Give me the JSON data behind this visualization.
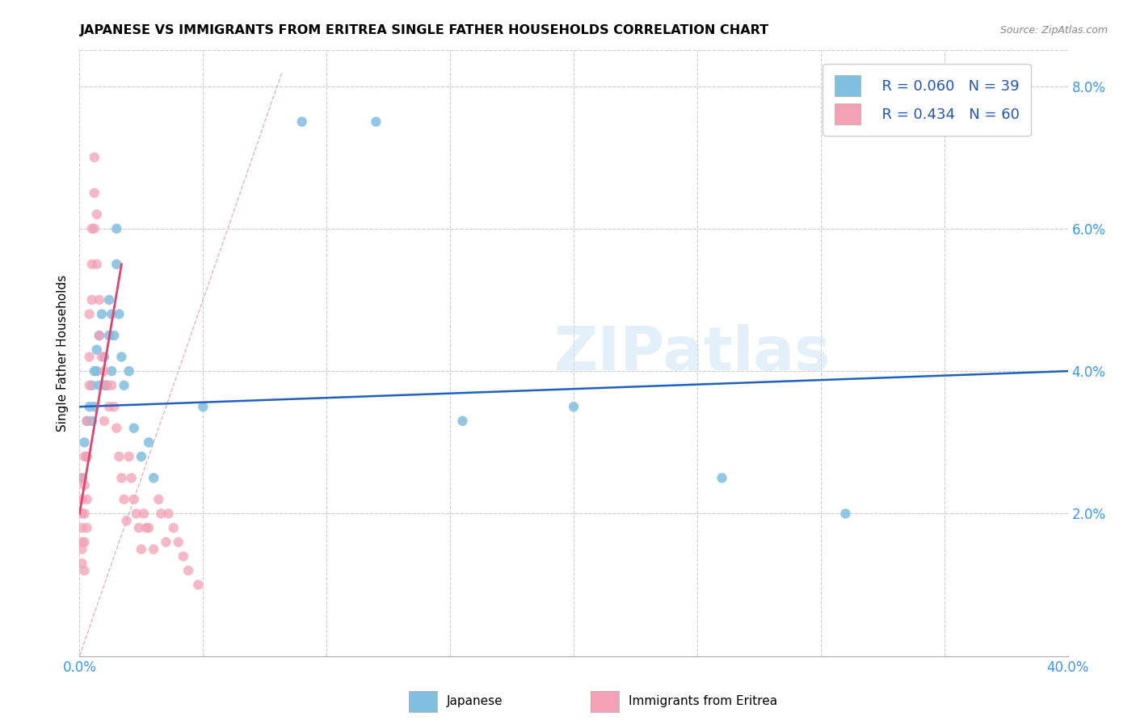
{
  "title": "JAPANESE VS IMMIGRANTS FROM ERITREA SINGLE FATHER HOUSEHOLDS CORRELATION CHART",
  "source": "Source: ZipAtlas.com",
  "ylabel": "Single Father Households",
  "x_min": 0.0,
  "x_max": 0.4,
  "y_min": 0.0,
  "y_max": 0.085,
  "x_ticks": [
    0.0,
    0.05,
    0.1,
    0.15,
    0.2,
    0.25,
    0.3,
    0.35,
    0.4
  ],
  "x_tick_labels_show": [
    "0.0%",
    "40.0%"
  ],
  "y_ticks_right": [
    0.02,
    0.04,
    0.06,
    0.08
  ],
  "y_tick_labels_right": [
    "2.0%",
    "4.0%",
    "6.0%",
    "8.0%"
  ],
  "watermark": "ZIPatlas",
  "legend_r1": "R = 0.060",
  "legend_n1": "N = 39",
  "legend_r2": "R = 0.434",
  "legend_n2": "N = 60",
  "color_japanese": "#7fbfdf",
  "color_eritrea": "#f4a0b5",
  "color_japanese_line": "#2060c0",
  "color_eritrea_line": "#e8406a",
  "color_diag": "#e8b0c0",
  "japanese_x": [
    0.001,
    0.002,
    0.003,
    0.003,
    0.004,
    0.005,
    0.005,
    0.006,
    0.006,
    0.007,
    0.007,
    0.008,
    0.008,
    0.009,
    0.01,
    0.01,
    0.011,
    0.012,
    0.012,
    0.013,
    0.013,
    0.014,
    0.015,
    0.015,
    0.016,
    0.017,
    0.018,
    0.02,
    0.022,
    0.025,
    0.028,
    0.03,
    0.05,
    0.09,
    0.12,
    0.155,
    0.2,
    0.26,
    0.31
  ],
  "japanese_y": [
    0.025,
    0.03,
    0.028,
    0.033,
    0.035,
    0.033,
    0.038,
    0.04,
    0.035,
    0.04,
    0.043,
    0.038,
    0.045,
    0.048,
    0.038,
    0.042,
    0.038,
    0.045,
    0.05,
    0.04,
    0.048,
    0.045,
    0.055,
    0.06,
    0.048,
    0.042,
    0.038,
    0.04,
    0.032,
    0.028,
    0.03,
    0.025,
    0.035,
    0.075,
    0.075,
    0.033,
    0.035,
    0.025,
    0.02
  ],
  "eritrea_x": [
    0.001,
    0.001,
    0.001,
    0.001,
    0.001,
    0.001,
    0.001,
    0.002,
    0.002,
    0.002,
    0.002,
    0.002,
    0.003,
    0.003,
    0.003,
    0.003,
    0.004,
    0.004,
    0.004,
    0.005,
    0.005,
    0.005,
    0.006,
    0.006,
    0.006,
    0.007,
    0.007,
    0.008,
    0.008,
    0.009,
    0.01,
    0.01,
    0.011,
    0.012,
    0.013,
    0.014,
    0.015,
    0.016,
    0.017,
    0.018,
    0.019,
    0.02,
    0.021,
    0.022,
    0.023,
    0.024,
    0.025,
    0.026,
    0.027,
    0.028,
    0.03,
    0.032,
    0.033,
    0.035,
    0.036,
    0.038,
    0.04,
    0.042,
    0.044,
    0.048
  ],
  "eritrea_y": [
    0.02,
    0.016,
    0.013,
    0.025,
    0.022,
    0.018,
    0.015,
    0.028,
    0.024,
    0.02,
    0.016,
    0.012,
    0.033,
    0.028,
    0.022,
    0.018,
    0.048,
    0.042,
    0.038,
    0.06,
    0.055,
    0.05,
    0.07,
    0.065,
    0.06,
    0.062,
    0.055,
    0.05,
    0.045,
    0.042,
    0.04,
    0.033,
    0.038,
    0.035,
    0.038,
    0.035,
    0.032,
    0.028,
    0.025,
    0.022,
    0.019,
    0.028,
    0.025,
    0.022,
    0.02,
    0.018,
    0.015,
    0.02,
    0.018,
    0.018,
    0.015,
    0.022,
    0.02,
    0.016,
    0.02,
    0.018,
    0.016,
    0.014,
    0.012,
    0.01
  ]
}
